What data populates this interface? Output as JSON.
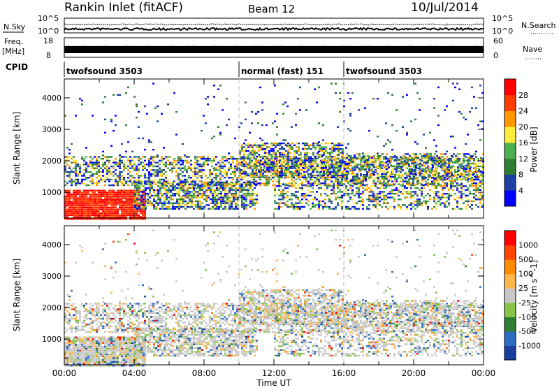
{
  "header": {
    "station": "Rankin Inlet (fitACF)",
    "beam": "Beam 12",
    "date": "10/Jul/2014"
  },
  "noise_panel": {
    "left_label": "N.Sky",
    "right_label": "N.Search",
    "tick_top": "10^5",
    "tick_bottom": "10^0",
    "right_tick_top": "10^5",
    "right_tick_bottom": "10^0"
  },
  "freq_panel": {
    "label_top": "Freq.",
    "label_unit": "[MHz]",
    "tick_top": "18",
    "tick_bottom": "8",
    "right_label": "Nave",
    "right_tick_top": "60",
    "right_tick_bottom": "0"
  },
  "cpid": {
    "label": "CPID",
    "segments": [
      {
        "name": "twofsound 3503",
        "start": 0,
        "end": 10
      },
      {
        "name": "normal (fast) 151",
        "start": 10,
        "end": 16
      },
      {
        "name": "twofsound 3503",
        "start": 16,
        "end": 24
      }
    ]
  },
  "chart_data": [
    {
      "type": "heatmap",
      "quantity": "Power",
      "ylabel": "Slant Range [km]",
      "ylim": [
        180,
        4600
      ],
      "y_ticks": [
        "1000",
        "2000",
        "3000",
        "4000"
      ],
      "x_range_hours": [
        0,
        24
      ],
      "colorbar": {
        "label": "Power [dB]",
        "ticks": [
          "4",
          "8",
          "12",
          "16",
          "20",
          "24",
          "28"
        ],
        "colors": [
          "#0000ff",
          "#1e3fa6",
          "#2e7d32",
          "#4caf50",
          "#ffeb3b",
          "#ff9800",
          "#ff3d00",
          "#ff0000"
        ]
      },
      "vertical_markers_hours": [
        10,
        16
      ]
    },
    {
      "type": "heatmap",
      "quantity": "Velocity",
      "ylabel": "Slant Range [km]",
      "xlabel": "Time UT",
      "ylim": [
        180,
        4600
      ],
      "y_ticks": [
        "1000",
        "2000",
        "3000",
        "4000"
      ],
      "x_ticks": [
        "00:00",
        "04:00",
        "08:00",
        "12:00",
        "16:00",
        "20:00",
        "00:00"
      ],
      "x_range_hours": [
        0,
        24
      ],
      "colorbar": {
        "label": "Velocity [m s^-1]",
        "ticks": [
          "1000",
          "500",
          "100",
          "25",
          "-25",
          "-100",
          "-500",
          "-1000"
        ],
        "colors": [
          "#1a3fa0",
          "#2e6cc2",
          "#2e7d32",
          "#8bc34a",
          "#c8c8c8",
          "#ffb74d",
          "#ff8c00",
          "#ff4500",
          "#ff0000"
        ]
      },
      "vertical_markers_hours": [
        10,
        16
      ]
    }
  ]
}
